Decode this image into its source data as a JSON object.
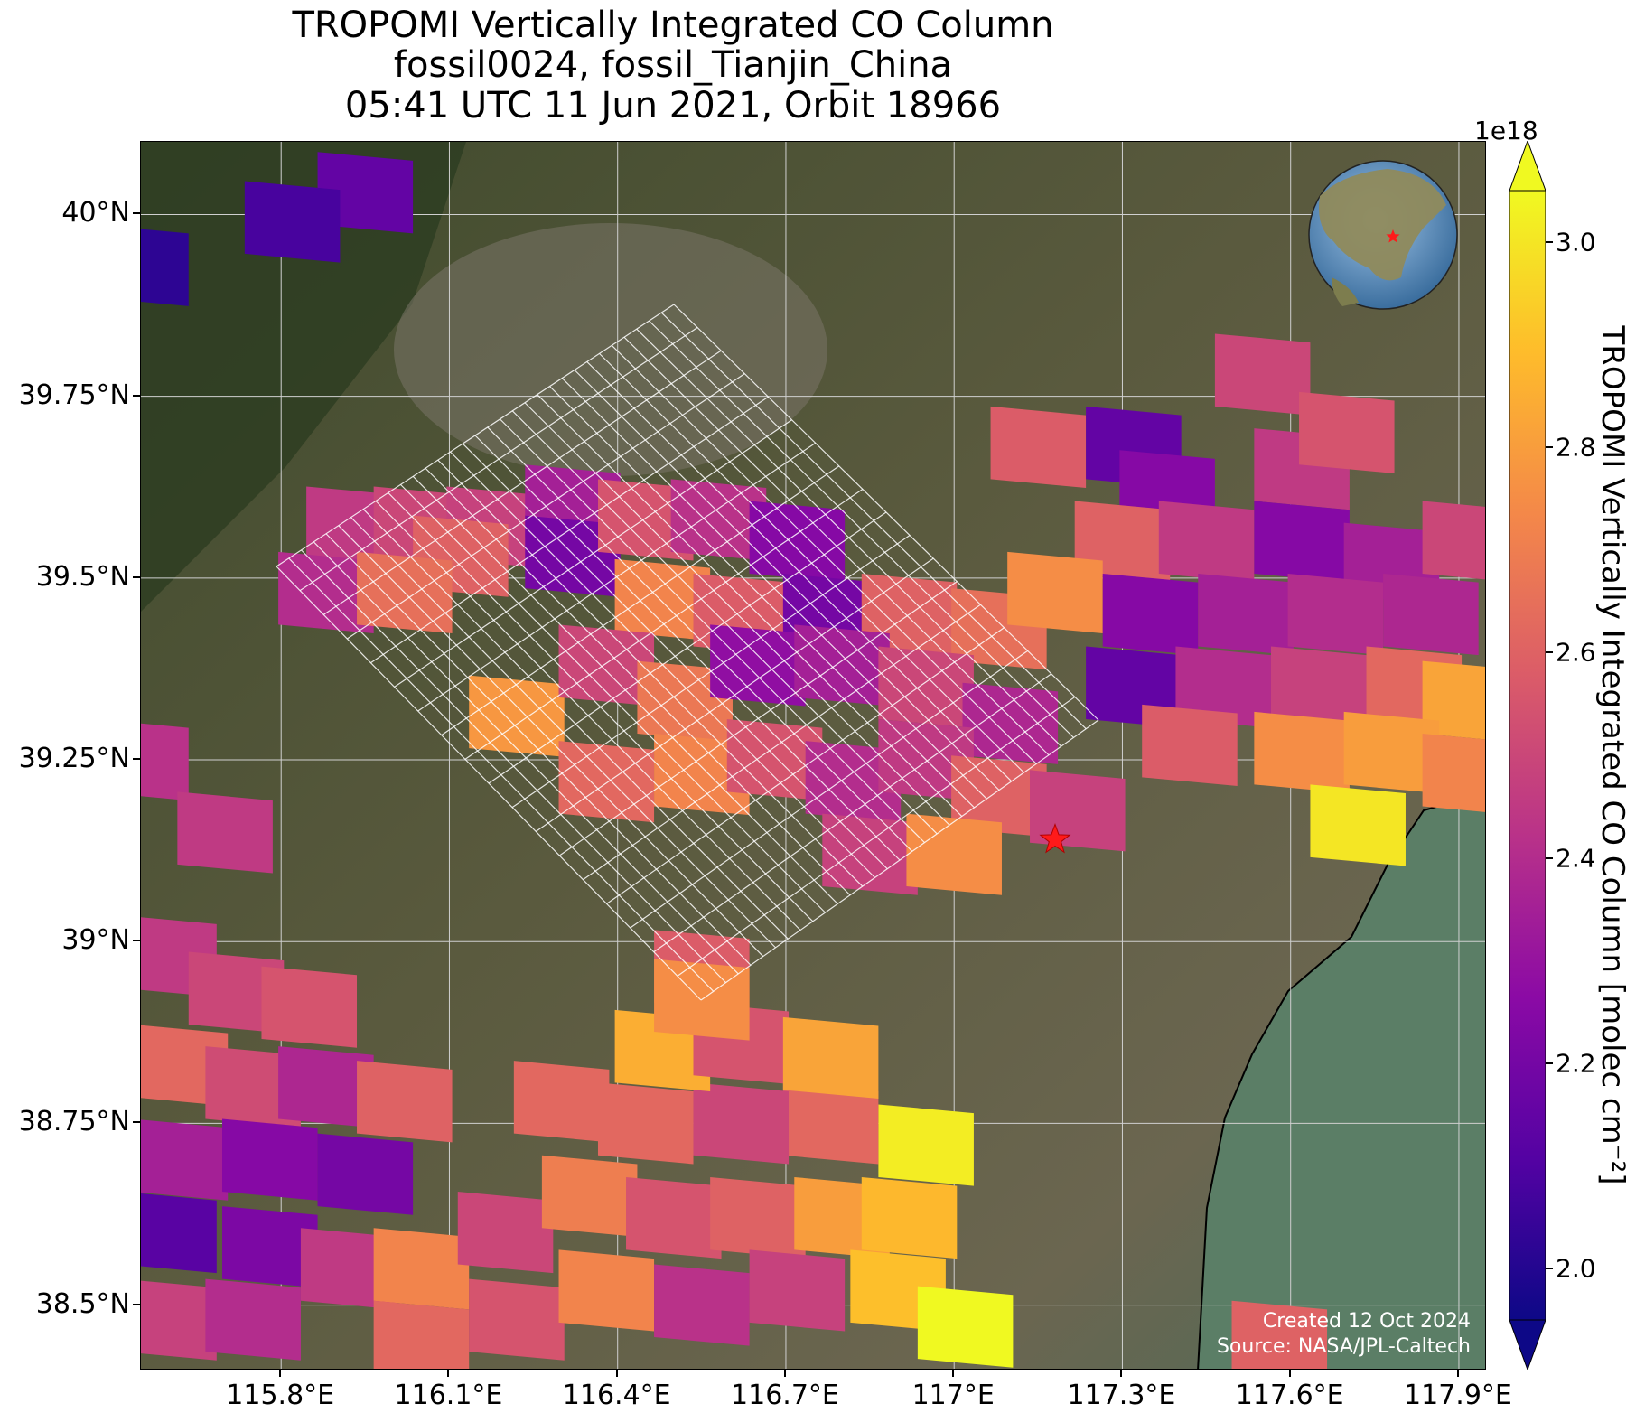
{
  "title": {
    "line1": "TROPOMI Vertically Integrated CO Column",
    "line2": "fossil0024, fossil_Tianjin_China",
    "line3": "05:41 UTC 11 Jun 2021, Orbit 18966"
  },
  "credit": {
    "created": "Created 12 Oct 2024",
    "source": "Source: NASA/JPL-Caltech"
  },
  "colorbar": {
    "title": "TROPOMI Vertically Integrated CO Column [molec cm⁻²]",
    "exponent": "1e18",
    "min": 1.95,
    "max": 3.05,
    "ticks": [
      2.0,
      2.2,
      2.4,
      2.6,
      2.8,
      3.0
    ],
    "tick_labels": [
      "2.0",
      "2.2",
      "2.4",
      "2.6",
      "2.8",
      "3.0"
    ],
    "extend": "both",
    "colormap": "plasma"
  },
  "map": {
    "lon_range": [
      115.55,
      117.95
    ],
    "lat_range": [
      38.41,
      40.1
    ],
    "x_ticks": [
      115.8,
      116.1,
      116.4,
      116.7,
      117.0,
      117.3,
      117.6,
      117.9
    ],
    "x_tick_labels": [
      "115.8°E",
      "116.1°E",
      "116.4°E",
      "116.7°E",
      "117°E",
      "117.3°E",
      "117.6°E",
      "117.9°E"
    ],
    "y_ticks": [
      40.0,
      39.75,
      39.5,
      39.25,
      39.0,
      38.75,
      38.5
    ],
    "y_tick_labels": [
      "40°N",
      "39.75°N",
      "39.5°N",
      "39.25°N",
      "39°N",
      "38.75°N",
      "38.5°N"
    ],
    "grid": true,
    "basemap": "satellite imagery",
    "site_marker": {
      "lon": 117.18,
      "lat": 39.14,
      "symbol": "red star",
      "color": "#ff0000"
    },
    "target_grid_color": "#ffffff",
    "inset_globe": {
      "center": "East Asia",
      "marker": "red star"
    }
  },
  "chart_data": {
    "type": "heatmap",
    "title": "TROPOMI Vertically Integrated CO Column",
    "units": "1e18 molec cm⁻²",
    "pixels": [
      {
        "lon": 115.95,
        "lat": 40.03,
        "value": 2.15
      },
      {
        "lon": 115.82,
        "lat": 39.99,
        "value": 2.08
      },
      {
        "lon": 115.55,
        "lat": 39.93,
        "value": 2.02
      },
      {
        "lon": 115.93,
        "lat": 39.57,
        "value": 2.45
      },
      {
        "lon": 116.05,
        "lat": 39.57,
        "value": 2.5
      },
      {
        "lon": 116.18,
        "lat": 39.57,
        "value": 2.48
      },
      {
        "lon": 116.32,
        "lat": 39.6,
        "value": 2.35
      },
      {
        "lon": 116.12,
        "lat": 39.53,
        "value": 2.6
      },
      {
        "lon": 115.88,
        "lat": 39.48,
        "value": 2.4
      },
      {
        "lon": 116.02,
        "lat": 39.48,
        "value": 2.65
      },
      {
        "lon": 116.32,
        "lat": 39.53,
        "value": 2.2
      },
      {
        "lon": 116.45,
        "lat": 39.58,
        "value": 2.55
      },
      {
        "lon": 116.58,
        "lat": 39.58,
        "value": 2.42
      },
      {
        "lon": 116.72,
        "lat": 39.55,
        "value": 2.25
      },
      {
        "lon": 116.48,
        "lat": 39.47,
        "value": 2.72
      },
      {
        "lon": 116.62,
        "lat": 39.45,
        "value": 2.58
      },
      {
        "lon": 116.78,
        "lat": 39.45,
        "value": 2.2
      },
      {
        "lon": 116.92,
        "lat": 39.45,
        "value": 2.6
      },
      {
        "lon": 117.08,
        "lat": 39.43,
        "value": 2.65
      },
      {
        "lon": 116.22,
        "lat": 39.31,
        "value": 2.78
      },
      {
        "lon": 116.38,
        "lat": 39.38,
        "value": 2.5
      },
      {
        "lon": 116.52,
        "lat": 39.33,
        "value": 2.68
      },
      {
        "lon": 116.65,
        "lat": 39.38,
        "value": 2.28
      },
      {
        "lon": 116.8,
        "lat": 39.38,
        "value": 2.35
      },
      {
        "lon": 116.95,
        "lat": 39.35,
        "value": 2.5
      },
      {
        "lon": 117.1,
        "lat": 39.3,
        "value": 2.38
      },
      {
        "lon": 116.38,
        "lat": 39.22,
        "value": 2.62
      },
      {
        "lon": 116.55,
        "lat": 39.23,
        "value": 2.72
      },
      {
        "lon": 116.68,
        "lat": 39.25,
        "value": 2.55
      },
      {
        "lon": 116.82,
        "lat": 39.22,
        "value": 2.4
      },
      {
        "lon": 116.95,
        "lat": 39.25,
        "value": 2.45
      },
      {
        "lon": 117.08,
        "lat": 39.2,
        "value": 2.6
      },
      {
        "lon": 116.85,
        "lat": 39.12,
        "value": 2.48
      },
      {
        "lon": 117.0,
        "lat": 39.12,
        "value": 2.75
      },
      {
        "lon": 117.22,
        "lat": 39.18,
        "value": 2.48
      },
      {
        "lon": 117.15,
        "lat": 39.68,
        "value": 2.58
      },
      {
        "lon": 117.32,
        "lat": 39.68,
        "value": 2.15
      },
      {
        "lon": 117.55,
        "lat": 39.78,
        "value": 2.5
      },
      {
        "lon": 117.38,
        "lat": 39.62,
        "value": 2.25
      },
      {
        "lon": 117.62,
        "lat": 39.65,
        "value": 2.45
      },
      {
        "lon": 117.7,
        "lat": 39.7,
        "value": 2.55
      },
      {
        "lon": 117.3,
        "lat": 39.55,
        "value": 2.6
      },
      {
        "lon": 117.45,
        "lat": 39.55,
        "value": 2.45
      },
      {
        "lon": 117.62,
        "lat": 39.55,
        "value": 2.25
      },
      {
        "lon": 117.78,
        "lat": 39.52,
        "value": 2.35
      },
      {
        "lon": 117.92,
        "lat": 39.55,
        "value": 2.5
      },
      {
        "lon": 117.18,
        "lat": 39.48,
        "value": 2.75
      },
      {
        "lon": 117.35,
        "lat": 39.45,
        "value": 2.25
      },
      {
        "lon": 117.52,
        "lat": 39.45,
        "value": 2.35
      },
      {
        "lon": 117.68,
        "lat": 39.45,
        "value": 2.4
      },
      {
        "lon": 117.85,
        "lat": 39.45,
        "value": 2.38
      },
      {
        "lon": 117.32,
        "lat": 39.35,
        "value": 2.15
      },
      {
        "lon": 117.48,
        "lat": 39.35,
        "value": 2.4
      },
      {
        "lon": 117.65,
        "lat": 39.35,
        "value": 2.48
      },
      {
        "lon": 117.82,
        "lat": 39.35,
        "value": 2.62
      },
      {
        "lon": 117.92,
        "lat": 39.33,
        "value": 2.82
      },
      {
        "lon": 117.42,
        "lat": 39.27,
        "value": 2.58
      },
      {
        "lon": 117.62,
        "lat": 39.26,
        "value": 2.75
      },
      {
        "lon": 117.78,
        "lat": 39.26,
        "value": 2.8
      },
      {
        "lon": 117.92,
        "lat": 39.23,
        "value": 2.72
      },
      {
        "lon": 117.72,
        "lat": 39.16,
        "value": 3.0
      },
      {
        "lon": 115.55,
        "lat": 39.25,
        "value": 2.42
      },
      {
        "lon": 115.7,
        "lat": 39.15,
        "value": 2.45
      },
      {
        "lon": 115.6,
        "lat": 38.98,
        "value": 2.45
      },
      {
        "lon": 115.72,
        "lat": 38.93,
        "value": 2.5
      },
      {
        "lon": 115.85,
        "lat": 38.91,
        "value": 2.55
      },
      {
        "lon": 115.62,
        "lat": 38.83,
        "value": 2.62
      },
      {
        "lon": 115.75,
        "lat": 38.8,
        "value": 2.52
      },
      {
        "lon": 115.88,
        "lat": 38.8,
        "value": 2.38
      },
      {
        "lon": 115.62,
        "lat": 38.7,
        "value": 2.35
      },
      {
        "lon": 115.78,
        "lat": 38.7,
        "value": 2.25
      },
      {
        "lon": 115.95,
        "lat": 38.68,
        "value": 2.2
      },
      {
        "lon": 116.02,
        "lat": 38.78,
        "value": 2.6
      },
      {
        "lon": 115.6,
        "lat": 38.6,
        "value": 2.12
      },
      {
        "lon": 115.78,
        "lat": 38.58,
        "value": 2.22
      },
      {
        "lon": 115.6,
        "lat": 38.48,
        "value": 2.48
      },
      {
        "lon": 115.75,
        "lat": 38.48,
        "value": 2.4
      },
      {
        "lon": 115.92,
        "lat": 38.55,
        "value": 2.45
      },
      {
        "lon": 116.05,
        "lat": 38.55,
        "value": 2.72
      },
      {
        "lon": 116.2,
        "lat": 38.6,
        "value": 2.5
      },
      {
        "lon": 116.35,
        "lat": 38.65,
        "value": 2.7
      },
      {
        "lon": 116.5,
        "lat": 38.62,
        "value": 2.55
      },
      {
        "lon": 116.65,
        "lat": 38.62,
        "value": 2.6
      },
      {
        "lon": 116.8,
        "lat": 38.62,
        "value": 2.8
      },
      {
        "lon": 116.92,
        "lat": 38.62,
        "value": 2.88
      },
      {
        "lon": 116.05,
        "lat": 38.45,
        "value": 2.62
      },
      {
        "lon": 116.22,
        "lat": 38.48,
        "value": 2.55
      },
      {
        "lon": 116.38,
        "lat": 38.52,
        "value": 2.72
      },
      {
        "lon": 116.55,
        "lat": 38.5,
        "value": 2.42
      },
      {
        "lon": 116.72,
        "lat": 38.52,
        "value": 2.48
      },
      {
        "lon": 116.9,
        "lat": 38.52,
        "value": 2.9
      },
      {
        "lon": 116.95,
        "lat": 38.72,
        "value": 3.02
      },
      {
        "lon": 116.78,
        "lat": 38.75,
        "value": 2.62
      },
      {
        "lon": 116.62,
        "lat": 38.75,
        "value": 2.5
      },
      {
        "lon": 116.45,
        "lat": 38.75,
        "value": 2.62
      },
      {
        "lon": 116.3,
        "lat": 38.78,
        "value": 2.62
      },
      {
        "lon": 116.48,
        "lat": 38.85,
        "value": 2.85
      },
      {
        "lon": 116.62,
        "lat": 38.86,
        "value": 2.55
      },
      {
        "lon": 116.78,
        "lat": 38.84,
        "value": 2.82
      },
      {
        "lon": 116.55,
        "lat": 38.96,
        "value": 2.58
      },
      {
        "lon": 116.55,
        "lat": 38.92,
        "value": 2.75
      },
      {
        "lon": 117.02,
        "lat": 38.47,
        "value": 3.05
      },
      {
        "lon": 117.58,
        "lat": 38.45,
        "value": 2.6
      }
    ]
  }
}
